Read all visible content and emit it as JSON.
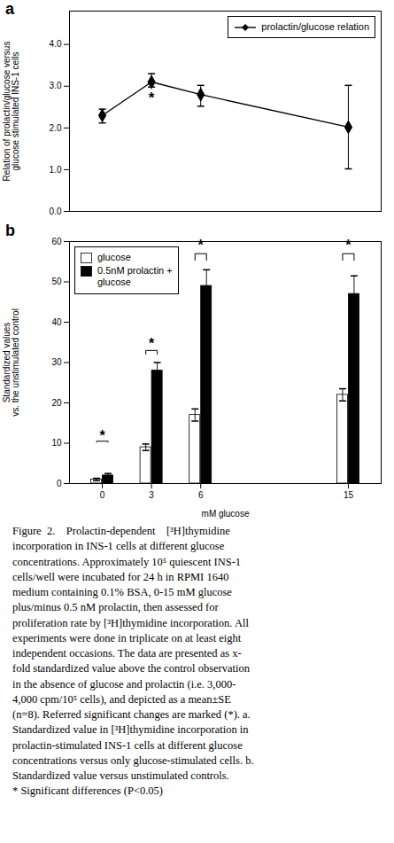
{
  "chart_data": [
    {
      "type": "line",
      "title": "a",
      "x": [
        0,
        3,
        6,
        15
      ],
      "xlim": [
        -2,
        17
      ],
      "series": [
        {
          "name": "prolactin/glucose relation",
          "color": "black",
          "marker": "diamond",
          "values": [
            2.3,
            3.1,
            2.8,
            2.02
          ],
          "error_upper": [
            0.15,
            0.2,
            0.22,
            1.0
          ],
          "error_lower": [
            0.18,
            0.12,
            0.28,
            1.0
          ]
        }
      ],
      "y_label": "Relation of prolactin/glucose versus\nglucose stimulated INS-1 cells",
      "ylim": [
        0,
        4.8
      ],
      "yticks": [
        0,
        1,
        2,
        3,
        4
      ],
      "tick_labels": "y",
      "legend": "upper right",
      "grid": false,
      "annotations": [
        {
          "x": 3,
          "y": 2.85,
          "text": "*"
        }
      ]
    },
    {
      "type": "bar",
      "title": "b",
      "x": [
        0,
        3,
        6,
        15
      ],
      "xlim": [
        -2,
        17
      ],
      "xticks": [
        0,
        3,
        6,
        15
      ],
      "x_label": "mM glucose",
      "y_label": "Standardized values\nvs. the unstimulated control",
      "ylim": [
        0,
        60
      ],
      "yticks": [
        0,
        10,
        20,
        30,
        40,
        50,
        60
      ],
      "series": [
        {
          "name": "glucose",
          "color": "white",
          "values": [
            1.0,
            9.0,
            17.0,
            22.0
          ],
          "errors": [
            0.3,
            0.8,
            1.5,
            1.5
          ]
        },
        {
          "name": "0.5nM prolactin +\nglucose",
          "color": "black",
          "values": [
            2.0,
            28.0,
            49.0,
            47.0
          ],
          "errors": [
            0.5,
            2.0,
            4.0,
            4.5
          ]
        }
      ],
      "legend": "upper left",
      "grid": false,
      "annotations": [
        {
          "x": 0,
          "y": 10.5,
          "text": "*"
        },
        {
          "x": 3,
          "y": 33,
          "text": "*"
        },
        {
          "x": 6,
          "y": 57,
          "text": "*"
        },
        {
          "x": 15,
          "y": 57,
          "text": "*"
        }
      ]
    }
  ],
  "caption": "Figure  2.    Prolactin-dependent    [³H]thymidine\nincorporation in INS-1 cells at different glucose\nconcentrations. Approximately 10⁵ quiescent INS-1\ncells/well were incubated for 24 h in RPMI 1640\nmedium containing 0.1% BSA, 0-15 mM glucose\nplus/minus 0.5 nM prolactin, then assessed for\nproliferation rate by [³H]thymidine incorporation. All\nexperiments were done in triplicate on at least eight\nindependent occasions. The data are presented as x-\nfold standardized value above the control observation\nin the absence of glucose and prolactin (i.e. 3,000-\n4,000 cpm/10⁵ cells), and depicted as a mean±SE\n(n=8). Referred significant changes are marked (*). a.\nStandardized value in [³H]thymidine incorporation in\nprolactin-stimulated INS-1 cells at different glucose\nconcentrations versus only glucose-stimulated cells. b.\nStandardized value versus unstimulated controls.\n* Significant differences (P<0.05)"
}
